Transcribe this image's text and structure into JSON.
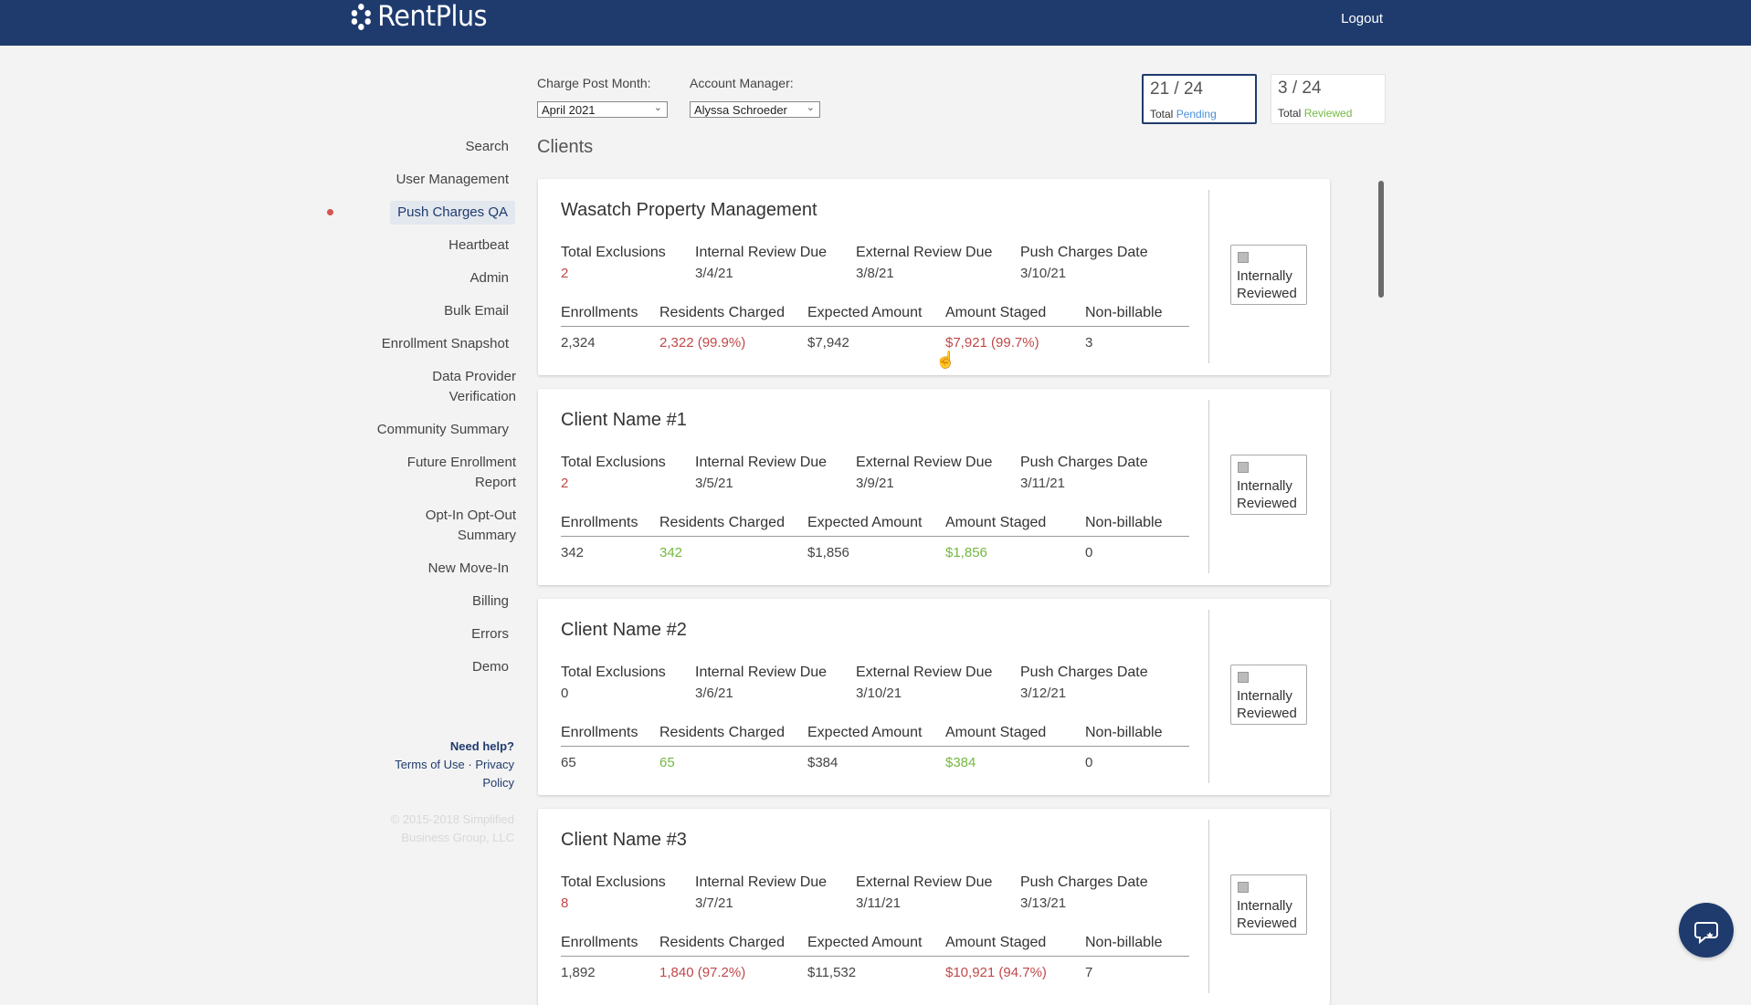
{
  "app": {
    "brand": "RentPlus",
    "logout_label": "Logout"
  },
  "filters": {
    "charge_post_month_label": "Charge Post Month:",
    "charge_post_month_value": "April 2021",
    "account_manager_label": "Account Manager:",
    "account_manager_value": "Alyssa Schroeder"
  },
  "stats": {
    "pending": {
      "value": "21 / 24",
      "prefix": "Total",
      "label": "Pending"
    },
    "reviewed": {
      "value": "3 / 24",
      "prefix": "Total",
      "label": "Reviewed"
    }
  },
  "nav": {
    "items": [
      {
        "label": "Search"
      },
      {
        "label": "User Management"
      },
      {
        "label": "Push Charges QA",
        "active": true
      },
      {
        "label": "Heartbeat"
      },
      {
        "label": "Admin"
      },
      {
        "label": "Bulk Email"
      },
      {
        "label": "Enrollment Snapshot"
      },
      {
        "label": "Data Provider",
        "label2": "Verification"
      },
      {
        "label": "Community Summary"
      },
      {
        "label": "Future Enrollment",
        "label2": "Report"
      },
      {
        "label": "Opt-In Opt-Out",
        "label2": "Summary"
      },
      {
        "label": "New Move-In"
      },
      {
        "label": "Billing"
      },
      {
        "label": "Errors"
      },
      {
        "label": "Demo"
      }
    ]
  },
  "help": {
    "need_help": "Need help?",
    "terms": "Terms of Use",
    "separator": "·",
    "privacy_1": "Privacy",
    "privacy_2": "Policy",
    "copyright_1": "© 2015-2018 Simplified",
    "copyright_2": "Business Group, LLC"
  },
  "main": {
    "title": "Clients",
    "labels": {
      "total_exclusions": "Total Exclusions",
      "internal_review_due": "Internal Review Due",
      "external_review_due": "External Review Due",
      "push_charges_date": "Push Charges Date",
      "enrollments": "Enrollments",
      "residents_charged": "Residents Charged",
      "expected_amount": "Expected Amount",
      "amount_staged": "Amount Staged",
      "non_billable": "Non-billable",
      "internally": "Internally",
      "reviewed": "Reviewed"
    },
    "clients": [
      {
        "name": "Wasatch Property Management",
        "total_exclusions": "2",
        "internal_review_due": "3/4/21",
        "external_review_due": "3/8/21",
        "push_charges_date": "3/10/21",
        "enrollments": "2,324",
        "residents_charged": "2,322 (99.9%)",
        "expected_amount": "$7,942",
        "amount_staged": "$7,921 (99.7%)",
        "non_billable": "3"
      },
      {
        "name": "Client Name #1",
        "total_exclusions": "2",
        "internal_review_due": "3/5/21",
        "external_review_due": "3/9/21",
        "push_charges_date": "3/11/21",
        "enrollments": "342",
        "residents_charged": "342",
        "expected_amount": "$1,856",
        "amount_staged": "$1,856",
        "non_billable": "0"
      },
      {
        "name": "Client Name #2",
        "total_exclusions": "0",
        "internal_review_due": "3/6/21",
        "external_review_due": "3/10/21",
        "push_charges_date": "3/12/21",
        "enrollments": "65",
        "residents_charged": "65",
        "expected_amount": "$384",
        "amount_staged": "$384",
        "non_billable": "0"
      },
      {
        "name": "Client Name #3",
        "total_exclusions": "8",
        "internal_review_due": "3/7/21",
        "external_review_due": "3/11/21",
        "push_charges_date": "3/13/21",
        "enrollments": "1,892",
        "residents_charged": "1,840 (97.2%)",
        "expected_amount": "$11,532",
        "amount_staged": "$10,921 (94.7%)",
        "non_billable": "7"
      }
    ]
  },
  "colors": {
    "nav_bar": "#1f3b6e",
    "warning": "#c0484a",
    "ok": "#74b841",
    "pending": "#4a90d9"
  }
}
